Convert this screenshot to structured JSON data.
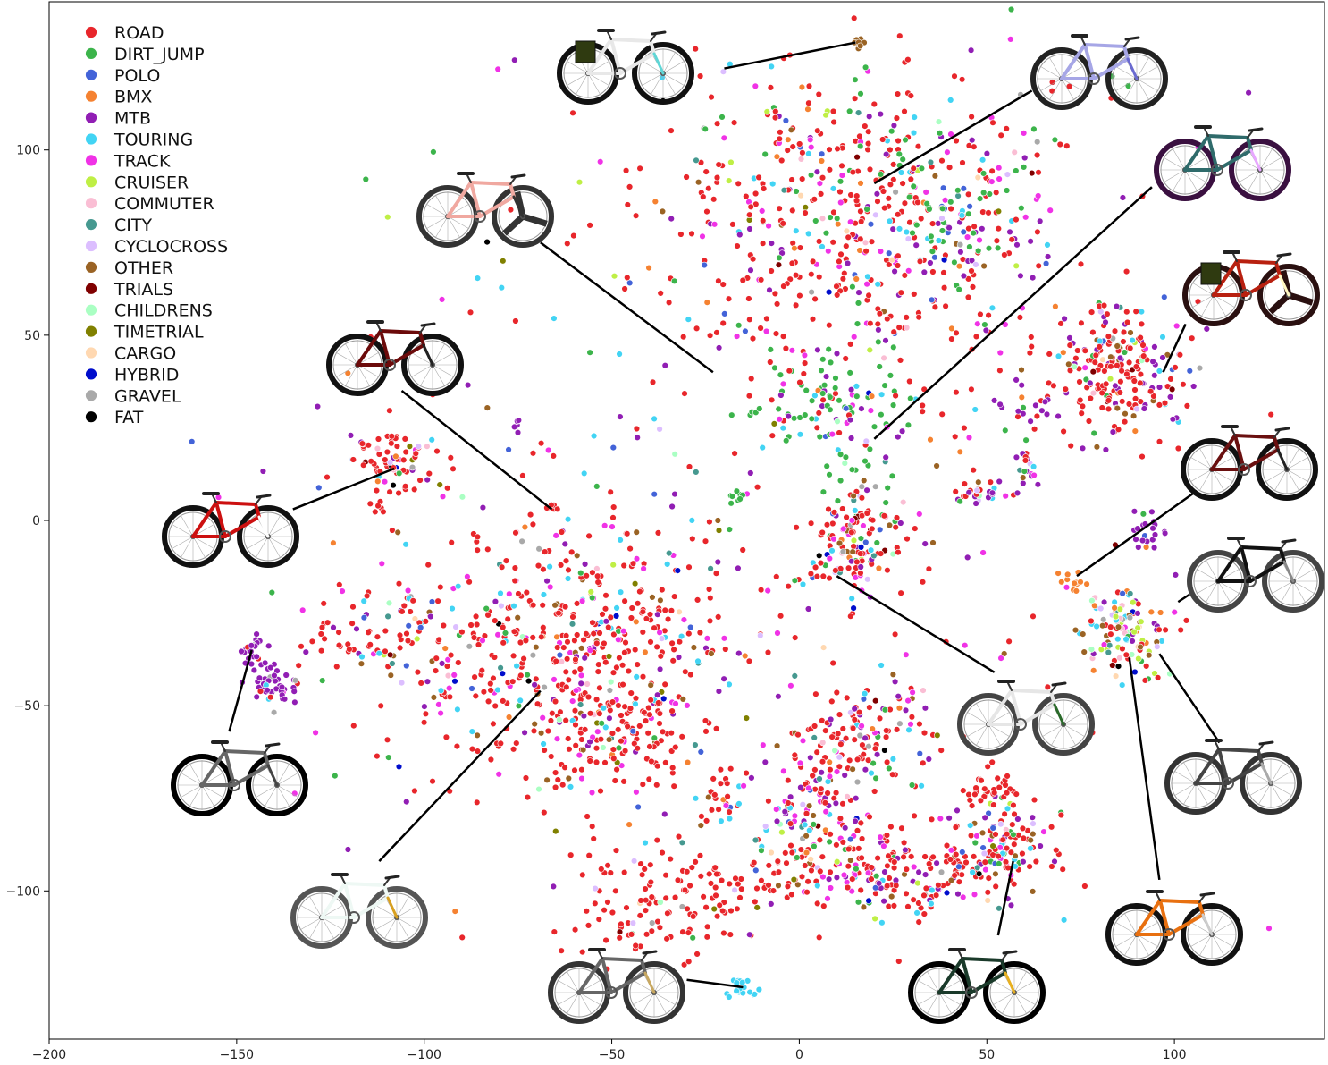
{
  "chart_data": {
    "type": "scatter",
    "title": "",
    "xlabel": "",
    "ylabel": "",
    "xlim": [
      -200,
      140
    ],
    "ylim": [
      -140,
      140
    ],
    "xticks": [
      -200,
      -150,
      -100,
      -50,
      0,
      50,
      100
    ],
    "yticks": [
      -100,
      -50,
      0,
      50,
      100
    ],
    "grid": false,
    "legend_position": "top-left",
    "series": [
      {
        "name": "ROAD",
        "color": "#e8262b"
      },
      {
        "name": "DIRT_JUMP",
        "color": "#3cb44b"
      },
      {
        "name": "POLO",
        "color": "#4363d8"
      },
      {
        "name": "BMX",
        "color": "#f58231"
      },
      {
        "name": "MTB",
        "color": "#911eb4"
      },
      {
        "name": "TOURING",
        "color": "#42d4f4"
      },
      {
        "name": "TRACK",
        "color": "#f032e6"
      },
      {
        "name": "CRUISER",
        "color": "#bfef45"
      },
      {
        "name": "COMMUTER",
        "color": "#fabed4"
      },
      {
        "name": "CITY",
        "color": "#469990"
      },
      {
        "name": "CYCLOCROSS",
        "color": "#dcbeff"
      },
      {
        "name": "OTHER",
        "color": "#9a6324"
      },
      {
        "name": "TRIALS",
        "color": "#800000"
      },
      {
        "name": "CHILDRENS",
        "color": "#aaffc3"
      },
      {
        "name": "TIMETRIAL",
        "color": "#808000"
      },
      {
        "name": "CARGO",
        "color": "#ffd8b1"
      },
      {
        "name": "HYBRID",
        "color": "#000dcc"
      },
      {
        "name": "GRAVEL",
        "color": "#a9a9a9"
      },
      {
        "name": "FAT",
        "color": "#000000"
      }
    ],
    "clusters": [
      {
        "cx": 15,
        "cy": 80,
        "sx": 28,
        "sy": 22,
        "n": 520,
        "mix": [
          55,
          6,
          3,
          3,
          8,
          5,
          12,
          1,
          1,
          1,
          1,
          2,
          0.5,
          0.5,
          0.5,
          0.5,
          1,
          1,
          0.5
        ]
      },
      {
        "cx": 40,
        "cy": 85,
        "sx": 10,
        "sy": 12,
        "n": 90,
        "mix": [
          10,
          45,
          2,
          2,
          15,
          3,
          10,
          1,
          1,
          2,
          1,
          2,
          1,
          1,
          1,
          1,
          1,
          1,
          0.5
        ]
      },
      {
        "cx": 10,
        "cy": 32,
        "sx": 10,
        "sy": 6,
        "n": 90,
        "mix": [
          15,
          55,
          2,
          2,
          8,
          3,
          5,
          1,
          1,
          1,
          1,
          2,
          1,
          1,
          1,
          1,
          1,
          1,
          0.5
        ]
      },
      {
        "cx": 15,
        "cy": 8,
        "sx": 6,
        "sy": 12,
        "n": 45,
        "mix": [
          10,
          60,
          2,
          2,
          8,
          3,
          5,
          1,
          1,
          1,
          1,
          2,
          1,
          1,
          1,
          1,
          1,
          1,
          0.5
        ]
      },
      {
        "cx": 85,
        "cy": 40,
        "sx": 9,
        "sy": 9,
        "n": 210,
        "mix": [
          55,
          4,
          2,
          2,
          18,
          4,
          2,
          1,
          1,
          1,
          1,
          6,
          1,
          0.5,
          0.5,
          0.5,
          1,
          1,
          0.5
        ]
      },
      {
        "cx": -108,
        "cy": 14,
        "sx": 6,
        "sy": 6,
        "n": 85,
        "mix": [
          75,
          1,
          1,
          1,
          4,
          3,
          4,
          0.5,
          2,
          0.5,
          3,
          3,
          0.5,
          0.5,
          0.5,
          0.5,
          0.5,
          1,
          0.5
        ]
      },
      {
        "cx": -60,
        "cy": -35,
        "sx": 25,
        "sy": 18,
        "n": 520,
        "mix": [
          60,
          2,
          2,
          2,
          8,
          5,
          9,
          1,
          1,
          2,
          1,
          4,
          0.5,
          0.5,
          0.5,
          0.5,
          1,
          1,
          0.5
        ]
      },
      {
        "cx": -50,
        "cy": -60,
        "sx": 10,
        "sy": 8,
        "n": 110,
        "mix": [
          70,
          2,
          2,
          2,
          6,
          4,
          5,
          1,
          1,
          1,
          1,
          3,
          0.5,
          0.5,
          0.5,
          0.5,
          1,
          1,
          0.5
        ]
      },
      {
        "cx": -115,
        "cy": -30,
        "sx": 10,
        "sy": 6,
        "n": 70,
        "mix": [
          70,
          2,
          2,
          2,
          6,
          4,
          5,
          1,
          1,
          1,
          1,
          5,
          0.5,
          0.5,
          0.5,
          0.5,
          1,
          1,
          0.5
        ]
      },
      {
        "cx": 15,
        "cy": -7,
        "sx": 6,
        "sy": 7,
        "n": 110,
        "mix": [
          60,
          2,
          3,
          2,
          6,
          4,
          8,
          1,
          1,
          1,
          2,
          3,
          0.5,
          0.5,
          0.5,
          0.5,
          2,
          1,
          0.5
        ]
      },
      {
        "cx": 15,
        "cy": -58,
        "sx": 10,
        "sy": 8,
        "n": 140,
        "mix": [
          55,
          4,
          2,
          3,
          10,
          4,
          8,
          1,
          1,
          2,
          1,
          5,
          0.5,
          0.5,
          0.5,
          0.5,
          1,
          1,
          0.5
        ]
      },
      {
        "cx": 3,
        "cy": -78,
        "sx": 6,
        "sy": 7,
        "n": 90,
        "mix": [
          35,
          3,
          2,
          2,
          18,
          10,
          20,
          1,
          1,
          2,
          1,
          4,
          0.5,
          0.5,
          0.5,
          0.5,
          1,
          1,
          0.5
        ]
      },
      {
        "cx": 25,
        "cy": -95,
        "sx": 15,
        "sy": 6,
        "n": 200,
        "mix": [
          55,
          3,
          2,
          2,
          12,
          4,
          14,
          1,
          1,
          1,
          1,
          4,
          0.5,
          0.5,
          0.5,
          0.5,
          1,
          1,
          0.5
        ]
      },
      {
        "cx": 55,
        "cy": -88,
        "sx": 7,
        "sy": 6,
        "n": 110,
        "mix": [
          45,
          10,
          2,
          2,
          12,
          4,
          10,
          2,
          1,
          1,
          1,
          6,
          0.5,
          0.5,
          0.5,
          0.5,
          1,
          1,
          0.5
        ]
      },
      {
        "cx": 52,
        "cy": -74,
        "sx": 3,
        "sy": 3,
        "n": 35,
        "mix": [
          85,
          1,
          1,
          1,
          2,
          1,
          2,
          0.5,
          0.5,
          0.5,
          0.5,
          2,
          0.5,
          0.5,
          0.5,
          0.5,
          0.5,
          0.5,
          0.5
        ]
      },
      {
        "cx": -38,
        "cy": -103,
        "sx": 12,
        "sy": 8,
        "n": 120,
        "mix": [
          92,
          0.5,
          0.5,
          0.5,
          1,
          0.5,
          1,
          0.5,
          0.5,
          0.5,
          0.5,
          1,
          0.5,
          0.5,
          0.5,
          0.5,
          0.5,
          0.5,
          0.5
        ]
      },
      {
        "cx": -10,
        "cy": -97,
        "sx": 10,
        "sy": 3,
        "n": 40,
        "mix": [
          92,
          0.5,
          0.5,
          0.5,
          1,
          0.5,
          1,
          0.5,
          0.5,
          0.5,
          0.5,
          1,
          0.5,
          0.5,
          0.5,
          0.5,
          0.5,
          0.5,
          0.5
        ]
      },
      {
        "cx": -15,
        "cy": -126,
        "sx": 2,
        "sy": 2,
        "n": 18,
        "mix": [
          0,
          0,
          0,
          0,
          0,
          100,
          0,
          0,
          0,
          0,
          0,
          0,
          0,
          0,
          0,
          0,
          0,
          0,
          0
        ]
      },
      {
        "cx": -140,
        "cy": -44,
        "sx": 3,
        "sy": 3,
        "n": 45,
        "mix": [
          2,
          0,
          0,
          0,
          88,
          2,
          2,
          0,
          1,
          0,
          2,
          1,
          0,
          0,
          0,
          0,
          0,
          2,
          0
        ]
      },
      {
        "cx": -146,
        "cy": -35,
        "sx": 2,
        "sy": 2,
        "n": 25,
        "mix": [
          2,
          0,
          0,
          0,
          88,
          2,
          2,
          0,
          1,
          0,
          2,
          1,
          0,
          0,
          0,
          0,
          0,
          2,
          0
        ]
      },
      {
        "cx": 88,
        "cy": -30,
        "sx": 6,
        "sy": 6,
        "n": 120,
        "mix": [
          25,
          2,
          2,
          4,
          6,
          16,
          3,
          10,
          8,
          3,
          2,
          12,
          0.5,
          2,
          1,
          2,
          1,
          3,
          0.5
        ]
      },
      {
        "cx": 74,
        "cy": -17,
        "sx": 2,
        "sy": 2,
        "n": 14,
        "mix": [
          2,
          0,
          0,
          90,
          2,
          0,
          2,
          0,
          0,
          0,
          0,
          2,
          0,
          0,
          0,
          0,
          0,
          2,
          0
        ]
      },
      {
        "cx": 93,
        "cy": -3,
        "sx": 3,
        "sy": 3,
        "n": 22,
        "mix": [
          10,
          2,
          2,
          2,
          70,
          2,
          2,
          0,
          2,
          0,
          2,
          4,
          0,
          0,
          0,
          0,
          0,
          2,
          0
        ]
      },
      {
        "cx": 48,
        "cy": 8,
        "sx": 4,
        "sy": 3,
        "n": 28,
        "mix": [
          40,
          4,
          4,
          2,
          30,
          4,
          4,
          1,
          1,
          1,
          1,
          6,
          0.5,
          0.5,
          0.5,
          0.5,
          1,
          1,
          0.5
        ]
      },
      {
        "cx": 61,
        "cy": 14,
        "sx": 2,
        "sy": 3,
        "n": 20,
        "mix": [
          40,
          4,
          4,
          2,
          30,
          4,
          4,
          1,
          1,
          1,
          1,
          6,
          0.5,
          0.5,
          0.5,
          0.5,
          1,
          1,
          0.5
        ]
      },
      {
        "cx": 61,
        "cy": 30,
        "sx": 3,
        "sy": 2,
        "n": 15,
        "mix": [
          10,
          10,
          4,
          2,
          60,
          4,
          4,
          1,
          1,
          1,
          1,
          4,
          0.5,
          0.5,
          0.5,
          0.5,
          1,
          1,
          0.5
        ]
      },
      {
        "cx": -66,
        "cy": 3,
        "sx": 0.8,
        "sy": 0.8,
        "n": 8,
        "mix": [
          100,
          0,
          0,
          0,
          0,
          0,
          0,
          0,
          0,
          0,
          0,
          0,
          0,
          0,
          0,
          0,
          0,
          0,
          0
        ]
      },
      {
        "cx": 16,
        "cy": 129,
        "sx": 1,
        "sy": 1,
        "n": 8,
        "mix": [
          0,
          0,
          0,
          0,
          0,
          0,
          0,
          0,
          0,
          0,
          0,
          100,
          0,
          0,
          0,
          0,
          0,
          0,
          0
        ]
      },
      {
        "cx": -17,
        "cy": 6,
        "sx": 1,
        "sy": 1,
        "n": 8,
        "mix": [
          0,
          100,
          0,
          0,
          0,
          0,
          0,
          0,
          0,
          0,
          0,
          0,
          0,
          0,
          0,
          0,
          0,
          0,
          0
        ]
      },
      {
        "cx": -75,
        "cy": 26,
        "sx": 1,
        "sy": 1,
        "n": 6,
        "mix": [
          0,
          0,
          0,
          0,
          100,
          0,
          0,
          0,
          0,
          0,
          0,
          0,
          0,
          0,
          0,
          0,
          0,
          0,
          0
        ]
      },
      {
        "cx": -20,
        "cy": -75,
        "sx": 3,
        "sy": 3,
        "n": 25,
        "mix": [
          30,
          5,
          3,
          3,
          10,
          25,
          5,
          1,
          1,
          3,
          1,
          8,
          1,
          1,
          1,
          1,
          1,
          1,
          0.5
        ]
      },
      {
        "cx": -15,
        "cy": 15,
        "sx": 60,
        "sy": 60,
        "n": 260,
        "mix": [
          40,
          8,
          4,
          3,
          12,
          6,
          10,
          2,
          1,
          2,
          2,
          4,
          1,
          1,
          1,
          1,
          1,
          1,
          0.5
        ]
      }
    ]
  },
  "annotations": [
    {
      "name": "fat-cargo-bike",
      "line": [
        [
          -20,
          122
        ],
        [
          15,
          129
        ]
      ],
      "frame_color": "#e8e8e8",
      "accent": "#5fd6d6",
      "wheel": "#111",
      "rack": true
    },
    {
      "name": "lavender-road-bike",
      "line": [
        [
          62,
          116
        ],
        [
          20,
          91
        ]
      ],
      "frame_color": "#a6a6e6",
      "accent": "#6a6ad0",
      "wheel": "#222"
    },
    {
      "name": "purple-track-bike",
      "line": [
        [
          94,
          90
        ],
        [
          20,
          22
        ]
      ],
      "frame_color": "#2f6b6b",
      "accent": "#e8a8ff",
      "wheel": "#3a1040"
    },
    {
      "name": "pink-track-bike",
      "line": [
        [
          -69,
          75
        ],
        [
          -23,
          40
        ]
      ],
      "frame_color": "#f0a8a0",
      "accent": "#333",
      "wheel": "#333",
      "trispoke": true
    },
    {
      "name": "maroon-road-bike",
      "line": [
        [
          -106,
          35
        ],
        [
          -66,
          3
        ]
      ],
      "frame_color": "#6b0a0a",
      "accent": "#222",
      "wheel": "#111"
    },
    {
      "name": "red-aero-road-bike",
      "line": [
        [
          -135,
          3
        ],
        [
          -108,
          14
        ]
      ],
      "frame_color": "#cc1010",
      "accent": "#fff",
      "wheel": "#111"
    },
    {
      "name": "grey-mtb-bike",
      "line": [
        [
          -152,
          -57
        ],
        [
          -146,
          -35
        ]
      ],
      "frame_color": "#666",
      "accent": "#444",
      "wheel": "#000"
    },
    {
      "name": "white-touring-bike",
      "line": [
        [
          -112,
          -92
        ],
        [
          -69,
          -46
        ]
      ],
      "frame_color": "#eef8f4",
      "accent": "#d8a020",
      "wheel": "#555"
    },
    {
      "name": "gold-rim-gravel-bike",
      "line": [
        [
          -30,
          -124
        ],
        [
          -15,
          -126
        ]
      ],
      "frame_color": "#666",
      "accent": "#c8a860",
      "wheel": "#333"
    },
    {
      "name": "white-gravel-bike",
      "line": [
        [
          52,
          -41
        ],
        [
          10,
          -15
        ]
      ],
      "frame_color": "#e6e6e6",
      "accent": "#2a6a2a",
      "wheel": "#444"
    },
    {
      "name": "red-tt-bike",
      "line": [
        [
          103,
          53
        ],
        [
          97,
          40
        ]
      ],
      "frame_color": "#b82010",
      "accent": "#fff6c0",
      "wheel": "#2a1010",
      "trispoke": true,
      "rack": true
    },
    {
      "name": "maroon-bmx-bike",
      "line": [
        [
          106,
          8
        ],
        [
          74,
          -15
        ]
      ],
      "frame_color": "#6a1010",
      "accent": "#222",
      "wheel": "#111"
    },
    {
      "name": "black-step-through-bike",
      "line": [
        [
          104,
          -20
        ],
        [
          101,
          -22
        ]
      ],
      "frame_color": "#111",
      "accent": "#888",
      "wheel": "#444"
    },
    {
      "name": "cruiser-bike",
      "line": [
        [
          112,
          -60
        ],
        [
          96,
          -36
        ]
      ],
      "frame_color": "#444",
      "accent": "#aaa",
      "wheel": "#333"
    },
    {
      "name": "orange-childrens-bike",
      "line": [
        [
          96,
          -97
        ],
        [
          88,
          -37
        ]
      ],
      "frame_color": "#e87010",
      "accent": "#ccc",
      "wheel": "#111"
    },
    {
      "name": "dark-green-fixie-bike",
      "line": [
        [
          53,
          -112
        ],
        [
          57,
          -92
        ]
      ],
      "frame_color": "#1a3a2a",
      "accent": "#e8b020",
      "wheel": "#000"
    }
  ]
}
